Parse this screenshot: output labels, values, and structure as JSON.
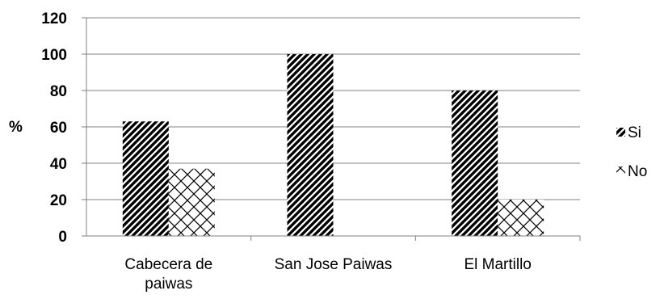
{
  "chart_data": {
    "type": "bar",
    "title": "",
    "xlabel": "",
    "ylabel": "%",
    "ylim": [
      0,
      120
    ],
    "yticks": [
      "0",
      "20",
      "40",
      "60",
      "80",
      "100",
      "120"
    ],
    "categories": [
      "Cabecera de paiwas",
      "San Jose Paiwas",
      "El Martillo"
    ],
    "category_lines": [
      [
        "Cabecera de",
        "paiwas"
      ],
      [
        "San Jose Paiwas"
      ],
      [
        "El Martillo"
      ]
    ],
    "series": [
      {
        "name": "Si",
        "values": [
          63,
          100,
          80
        ],
        "pattern": "diagonal-stripes"
      },
      {
        "name": "No",
        "values": [
          37,
          0,
          20
        ],
        "pattern": "crosshatch"
      }
    ],
    "grid": true,
    "legend": "right",
    "colors": {
      "fill": "#000000",
      "background": "#ffffff",
      "grid": "#808080"
    }
  }
}
